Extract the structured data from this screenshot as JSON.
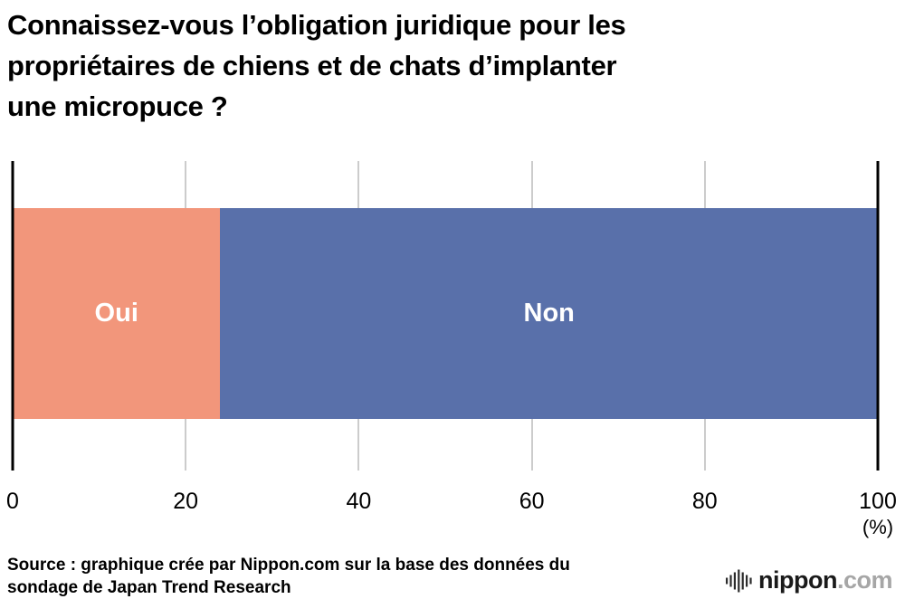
{
  "title": {
    "lines": [
      "Connaissez-vous l’obligation juridique pour les",
      "propriétaires de chiens et de chats d’implanter",
      "une micropuce ?"
    ]
  },
  "chart_data": {
    "type": "bar",
    "orientation": "horizontal",
    "stacked": true,
    "title": "Connaissez-vous l’obligation juridique pour les propriétaires de chiens et de chats d’implanter une micropuce ?",
    "categories": [
      "Oui",
      "Non"
    ],
    "values": [
      24,
      76
    ],
    "colors": [
      "#F2967B",
      "#5970AA"
    ],
    "segment_label_color": "#FFFFFF",
    "x_ticks": [
      0,
      20,
      40,
      60,
      80,
      100
    ],
    "xlim": [
      0,
      100
    ],
    "unit_label": "(%)",
    "grid": true,
    "legend": "none"
  },
  "source": {
    "lines": [
      "Source : graphique crée par Nippon.com sur la base des données du",
      "sondage de Japan Trend Research"
    ]
  },
  "logo": {
    "name": "nippon",
    "suffix": ".com"
  }
}
